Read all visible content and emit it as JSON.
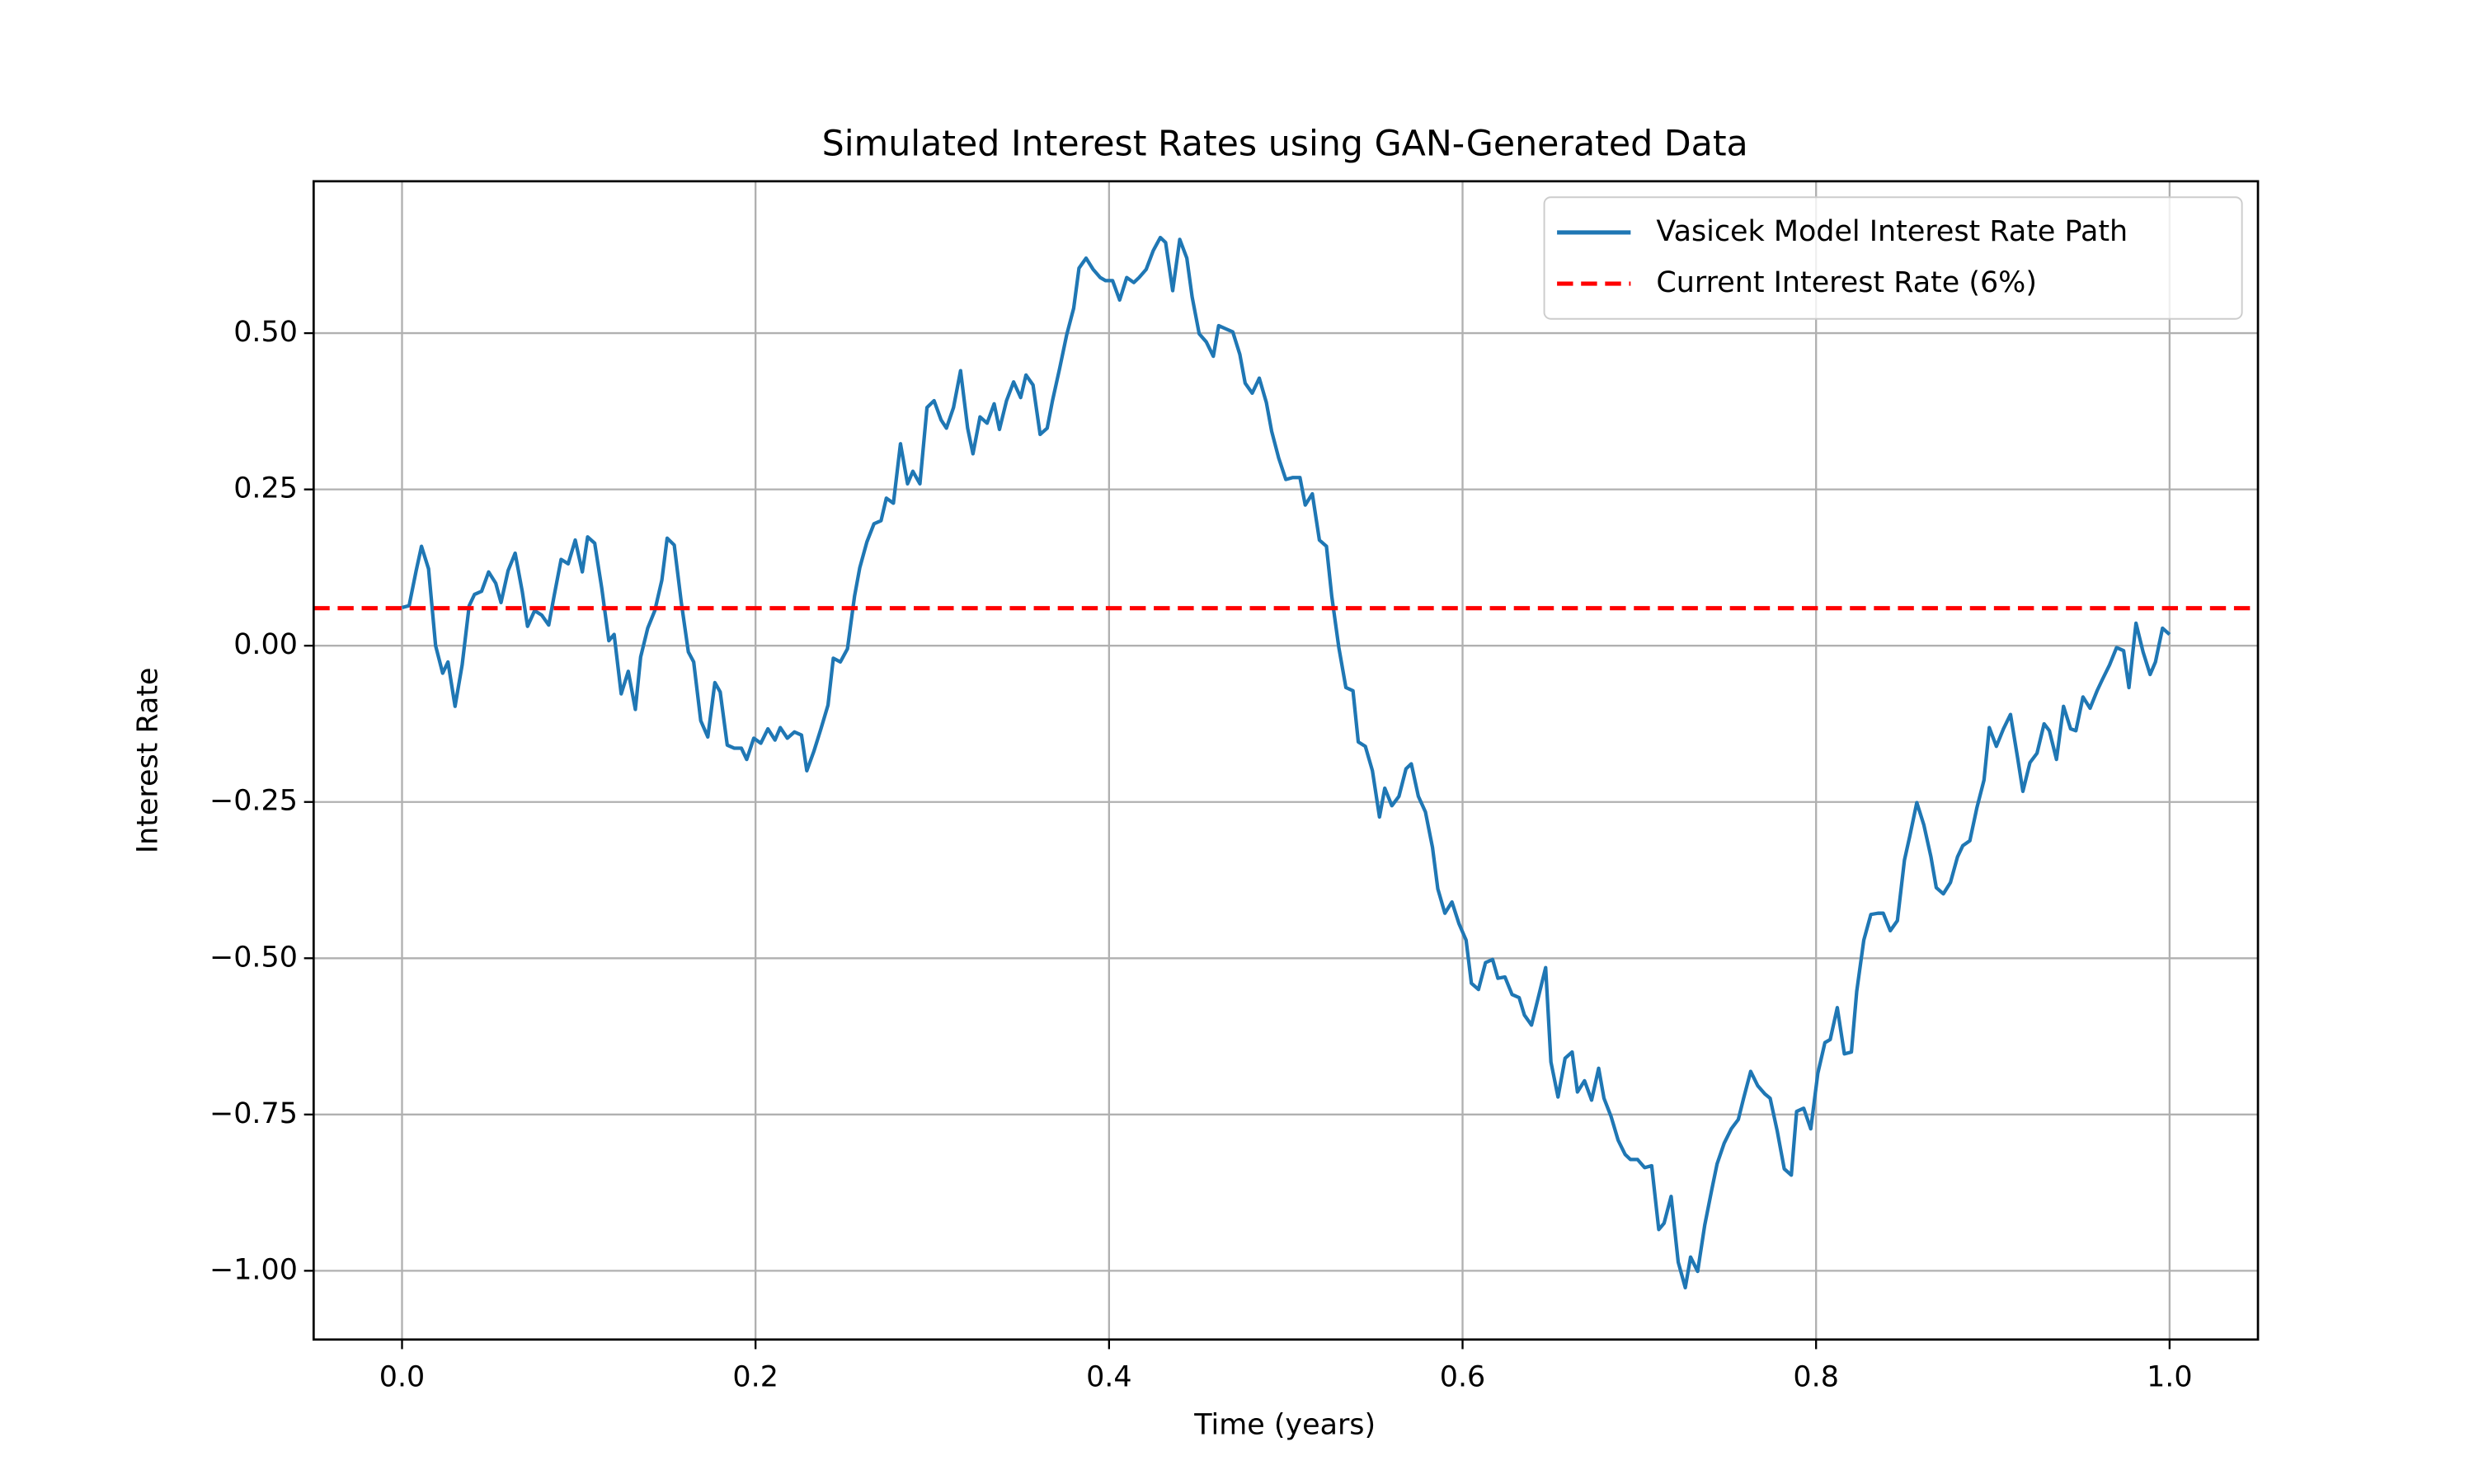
{
  "chart_data": {
    "type": "line",
    "title": "Simulated Interest Rates using GAN-Generated Data",
    "xlabel": "Time (years)",
    "ylabel": "Interest Rate",
    "x": [
      0,
      0.004,
      0.008,
      0.011,
      0.015,
      0.019,
      0.023,
      0.026,
      0.03,
      0.034,
      0.038,
      0.041,
      0.045,
      0.049,
      0.053,
      0.056,
      0.06,
      0.064,
      0.068,
      0.071,
      0.075,
      0.079,
      0.083,
      0.086,
      0.09,
      0.094,
      0.098,
      0.102,
      0.105,
      0.109,
      0.113,
      0.117,
      0.12,
      0.124,
      0.128,
      0.132,
      0.135,
      0.139,
      0.143,
      0.147,
      0.15,
      0.154,
      0.158,
      0.162,
      0.165,
      0.169,
      0.173,
      0.177,
      0.18,
      0.184,
      0.188,
      0.192,
      0.195,
      0.199,
      0.203,
      0.207,
      0.211,
      0.214,
      0.218,
      0.222,
      0.226,
      0.229,
      0.233,
      0.237,
      0.241,
      0.244,
      0.248,
      0.252,
      0.256,
      0.259,
      0.263,
      0.267,
      0.271,
      0.274,
      0.278,
      0.282,
      0.286,
      0.289,
      0.293,
      0.297,
      0.301,
      0.305,
      0.308,
      0.312,
      0.316,
      0.32,
      0.323,
      0.327,
      0.331,
      0.335,
      0.338,
      0.342,
      0.346,
      0.35,
      0.353,
      0.357,
      0.361,
      0.365,
      0.368,
      0.372,
      0.376,
      0.38,
      0.383,
      0.387,
      0.391,
      0.395,
      0.398,
      0.402,
      0.406,
      0.41,
      0.414,
      0.417,
      0.421,
      0.425,
      0.429,
      0.432,
      0.436,
      0.44,
      0.444,
      0.447,
      0.451,
      0.455,
      0.459,
      0.462,
      0.466,
      0.47,
      0.474,
      0.477,
      0.481,
      0.485,
      0.489,
      0.492,
      0.496,
      0.5,
      0.504,
      0.508,
      0.511,
      0.515,
      0.519,
      0.523,
      0.526,
      0.53,
      0.534,
      0.538,
      0.541,
      0.545,
      0.549,
      0.553,
      0.556,
      0.56,
      0.564,
      0.568,
      0.571,
      0.575,
      0.579,
      0.583,
      0.586,
      0.59,
      0.594,
      0.598,
      0.602,
      0.605,
      0.609,
      0.613,
      0.617,
      0.62,
      0.624,
      0.628,
      0.632,
      0.635,
      0.639,
      0.643,
      0.647,
      0.65,
      0.654,
      0.658,
      0.662,
      0.665,
      0.669,
      0.673,
      0.677,
      0.68,
      0.684,
      0.688,
      0.692,
      0.695,
      0.699,
      0.703,
      0.707,
      0.711,
      0.714,
      0.718,
      0.722,
      0.726,
      0.729,
      0.733,
      0.737,
      0.741,
      0.744,
      0.748,
      0.752,
      0.756,
      0.759,
      0.763,
      0.767,
      0.771,
      0.774,
      0.778,
      0.782,
      0.786,
      0.789,
      0.793,
      0.797,
      0.801,
      0.805,
      0.808,
      0.812,
      0.816,
      0.82,
      0.823,
      0.827,
      0.831,
      0.835,
      0.838,
      0.842,
      0.846,
      0.85,
      0.853,
      0.857,
      0.861,
      0.865,
      0.868,
      0.872,
      0.876,
      0.88,
      0.883,
      0.887,
      0.891,
      0.895,
      0.898,
      0.902,
      0.906,
      0.91,
      0.914,
      0.917,
      0.921,
      0.925,
      0.929,
      0.932,
      0.936,
      0.94,
      0.944,
      0.947,
      0.951,
      0.955,
      0.959,
      0.962,
      0.966,
      0.97,
      0.974,
      0.977,
      0.981,
      0.985,
      0.989,
      0.992,
      0.996,
      1
    ],
    "series": [
      {
        "name": "Vasicek Model Interest Rate Path",
        "color": "#1f77b4",
        "values": [
          0.061,
          0.064,
          0.12,
          0.159,
          0.123,
          0.0,
          -0.044,
          -0.026,
          -0.097,
          -0.031,
          0.064,
          0.082,
          0.087,
          0.118,
          0.1,
          0.069,
          0.12,
          0.148,
          0.087,
          0.031,
          0.056,
          0.049,
          0.033,
          0.079,
          0.138,
          0.131,
          0.169,
          0.118,
          0.174,
          0.164,
          0.092,
          0.008,
          0.018,
          -0.077,
          -0.041,
          -0.102,
          -0.018,
          0.028,
          0.056,
          0.105,
          0.172,
          0.161,
          0.069,
          -0.01,
          -0.026,
          -0.12,
          -0.146,
          -0.059,
          -0.074,
          -0.159,
          -0.164,
          -0.164,
          -0.182,
          -0.148,
          -0.156,
          -0.133,
          -0.151,
          -0.131,
          -0.148,
          -0.138,
          -0.143,
          -0.2,
          -0.169,
          -0.133,
          -0.095,
          -0.02,
          -0.026,
          -0.005,
          0.079,
          0.125,
          0.166,
          0.195,
          0.2,
          0.236,
          0.228,
          0.323,
          0.259,
          0.279,
          0.259,
          0.381,
          0.392,
          0.361,
          0.348,
          0.381,
          0.44,
          0.348,
          0.307,
          0.366,
          0.356,
          0.387,
          0.346,
          0.392,
          0.422,
          0.397,
          0.433,
          0.417,
          0.338,
          0.348,
          0.392,
          0.443,
          0.497,
          0.54,
          0.604,
          0.62,
          0.602,
          0.589,
          0.584,
          0.584,
          0.553,
          0.589,
          0.581,
          0.589,
          0.602,
          0.632,
          0.653,
          0.645,
          0.568,
          0.65,
          0.62,
          0.558,
          0.499,
          0.486,
          0.463,
          0.512,
          0.507,
          0.502,
          0.466,
          0.42,
          0.404,
          0.428,
          0.389,
          0.343,
          0.3,
          0.266,
          0.269,
          0.269,
          0.225,
          0.243,
          0.169,
          0.159,
          0.079,
          -0.003,
          -0.067,
          -0.072,
          -0.154,
          -0.161,
          -0.2,
          -0.274,
          -0.228,
          -0.256,
          -0.241,
          -0.197,
          -0.189,
          -0.241,
          -0.266,
          -0.323,
          -0.389,
          -0.428,
          -0.41,
          -0.445,
          -0.471,
          -0.54,
          -0.55,
          -0.507,
          -0.502,
          -0.532,
          -0.53,
          -0.558,
          -0.563,
          -0.591,
          -0.607,
          -0.561,
          -0.515,
          -0.666,
          -0.722,
          -0.66,
          -0.65,
          -0.714,
          -0.696,
          -0.727,
          -0.676,
          -0.724,
          -0.753,
          -0.791,
          -0.814,
          -0.822,
          -0.822,
          -0.835,
          -0.832,
          -0.934,
          -0.924,
          -0.881,
          -0.986,
          -1.027,
          -0.978,
          -1.001,
          -0.927,
          -0.87,
          -0.829,
          -0.796,
          -0.773,
          -0.758,
          -0.724,
          -0.681,
          -0.704,
          -0.717,
          -0.724,
          -0.776,
          -0.837,
          -0.847,
          -0.745,
          -0.74,
          -0.773,
          -0.684,
          -0.635,
          -0.63,
          -0.579,
          -0.653,
          -0.65,
          -0.553,
          -0.471,
          -0.43,
          -0.428,
          -0.428,
          -0.456,
          -0.44,
          -0.343,
          -0.305,
          -0.251,
          -0.287,
          -0.338,
          -0.387,
          -0.397,
          -0.379,
          -0.338,
          -0.32,
          -0.312,
          -0.259,
          -0.215,
          -0.131,
          -0.161,
          -0.133,
          -0.11,
          -0.179,
          -0.233,
          -0.187,
          -0.172,
          -0.125,
          -0.136,
          -0.182,
          -0.097,
          -0.133,
          -0.136,
          -0.082,
          -0.1,
          -0.072,
          -0.054,
          -0.031,
          -0.003,
          -0.008,
          -0.067,
          0.036,
          -0.01,
          -0.046,
          -0.026,
          0.028,
          0.018
        ]
      }
    ],
    "reference_lines": [
      {
        "name": "Current Interest Rate (6%)",
        "value": 0.06,
        "color": "#ff0000",
        "style": "dashed"
      }
    ],
    "xlim": [
      -0.05,
      1.05
    ],
    "ylim": [
      -1.11,
      0.743
    ],
    "xticks": [
      {
        "value": 0,
        "label": "0.0"
      },
      0.2,
      0.4,
      0.6,
      0.8,
      {
        "value": 1,
        "label": "1.0"
      }
    ],
    "yticks": [
      {
        "value": -1,
        "label": "−1.00"
      },
      {
        "value": -0.75,
        "label": "−0.75"
      },
      {
        "value": -0.5,
        "label": "−0.50"
      },
      {
        "value": -0.25,
        "label": "−0.25"
      },
      {
        "value": 0,
        "label": "0.00"
      },
      {
        "value": 0.25,
        "label": "0.25"
      },
      {
        "value": 0.5,
        "label": "0.50"
      }
    ],
    "grid": true,
    "legend": "upper right"
  }
}
